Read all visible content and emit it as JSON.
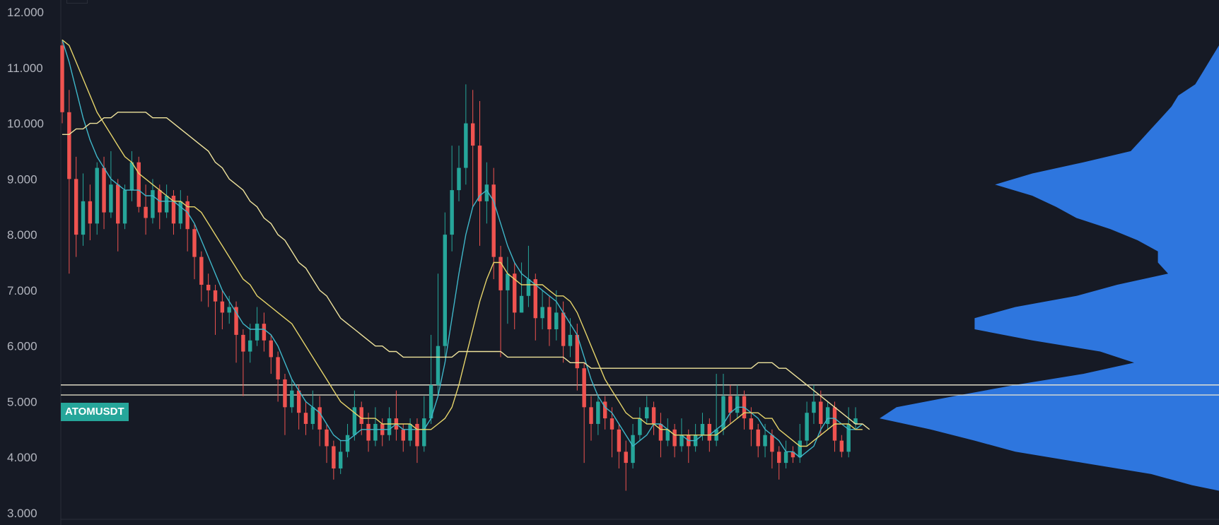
{
  "symbol": "ATOMUSDT",
  "colors": {
    "background": "#161a25",
    "axis_text": "#b2b5be",
    "up": "#26a69a",
    "down": "#ef5350",
    "ma_fast": "#3fb7c9",
    "ma_mid": "#e6d46a",
    "ma_slow": "#efe39c",
    "volume_profile": "#2f7be8",
    "hline": "#f0ead2"
  },
  "chart_data": {
    "type": "candlestick",
    "ylim": [
      3.0,
      12.0
    ],
    "yticks": [
      "12.000",
      "11.000",
      "10.000",
      "9.000",
      "8.000",
      "7.000",
      "6.000",
      "5.000",
      "4.000",
      "3.000"
    ],
    "horizontal_levels": [
      5.3,
      5.12
    ],
    "candles": [
      [
        11.4,
        10.2,
        11.5,
        10.0
      ],
      [
        10.2,
        9.0,
        10.6,
        7.3
      ],
      [
        9.0,
        8.0,
        9.4,
        7.6
      ],
      [
        8.0,
        8.6,
        9.1,
        7.8
      ],
      [
        8.6,
        8.2,
        8.9,
        7.9
      ],
      [
        8.2,
        9.2,
        9.3,
        8.0
      ],
      [
        9.2,
        8.4,
        9.4,
        8.1
      ],
      [
        8.4,
        8.9,
        9.5,
        8.3
      ],
      [
        8.9,
        8.2,
        9.0,
        7.7
      ],
      [
        8.2,
        8.8,
        8.9,
        8.1
      ],
      [
        8.8,
        9.3,
        9.5,
        8.6
      ],
      [
        9.3,
        8.5,
        9.4,
        8.4
      ],
      [
        8.5,
        8.3,
        8.9,
        8.0
      ],
      [
        8.3,
        8.8,
        9.0,
        8.2
      ],
      [
        8.8,
        8.4,
        8.9,
        8.1
      ],
      [
        8.4,
        8.7,
        8.9,
        8.3
      ],
      [
        8.7,
        8.2,
        8.8,
        8.0
      ],
      [
        8.2,
        8.6,
        8.8,
        8.1
      ],
      [
        8.6,
        8.1,
        8.7,
        7.7
      ],
      [
        8.1,
        7.6,
        8.2,
        7.2
      ],
      [
        7.6,
        7.1,
        7.7,
        6.8
      ],
      [
        7.1,
        7.0,
        7.3,
        6.7
      ],
      [
        7.0,
        6.8,
        7.1,
        6.2
      ],
      [
        6.8,
        6.6,
        7.0,
        6.3
      ],
      [
        6.6,
        6.7,
        6.9,
        6.4
      ],
      [
        6.7,
        6.2,
        6.8,
        5.7
      ],
      [
        6.2,
        5.9,
        6.3,
        5.1
      ],
      [
        5.9,
        6.1,
        6.4,
        5.7
      ],
      [
        6.1,
        6.4,
        6.7,
        6.0
      ],
      [
        6.4,
        6.1,
        6.6,
        5.9
      ],
      [
        6.1,
        5.8,
        6.2,
        5.5
      ],
      [
        5.8,
        5.4,
        5.9,
        5.0
      ],
      [
        5.4,
        4.9,
        5.5,
        4.4
      ],
      [
        4.9,
        5.2,
        5.4,
        4.8
      ],
      [
        5.2,
        4.8,
        5.3,
        4.5
      ],
      [
        4.8,
        4.6,
        5.0,
        4.4
      ],
      [
        4.6,
        4.9,
        5.2,
        4.5
      ],
      [
        4.9,
        4.5,
        5.1,
        4.2
      ],
      [
        4.5,
        4.2,
        4.6,
        3.9
      ],
      [
        4.2,
        3.8,
        4.3,
        3.6
      ],
      [
        3.8,
        4.1,
        4.3,
        3.7
      ],
      [
        4.1,
        4.4,
        4.6,
        4.0
      ],
      [
        4.4,
        4.9,
        5.2,
        4.3
      ],
      [
        4.9,
        4.6,
        5.0,
        4.4
      ],
      [
        4.6,
        4.3,
        4.8,
        4.1
      ],
      [
        4.3,
        4.6,
        4.9,
        4.2
      ],
      [
        4.6,
        4.4,
        4.7,
        4.2
      ],
      [
        4.4,
        4.7,
        4.9,
        4.3
      ],
      [
        4.7,
        4.5,
        5.2,
        4.3
      ],
      [
        4.5,
        4.3,
        4.6,
        4.1
      ],
      [
        4.3,
        4.6,
        4.7,
        4.2
      ],
      [
        4.6,
        4.2,
        4.7,
        3.9
      ],
      [
        4.2,
        4.7,
        5.1,
        4.1
      ],
      [
        4.7,
        5.3,
        6.2,
        4.6
      ],
      [
        5.3,
        6.0,
        7.3,
        5.1
      ],
      [
        6.0,
        8.0,
        8.4,
        5.8
      ],
      [
        8.0,
        8.8,
        9.6,
        7.7
      ],
      [
        8.8,
        9.2,
        9.6,
        8.6
      ],
      [
        9.2,
        10.0,
        10.7,
        8.9
      ],
      [
        10.0,
        9.6,
        10.6,
        8.5
      ],
      [
        9.6,
        8.6,
        10.4,
        7.8
      ],
      [
        8.6,
        8.9,
        9.3,
        8.2
      ],
      [
        8.9,
        7.6,
        9.2,
        7.2
      ],
      [
        7.6,
        7.0,
        7.8,
        5.8
      ],
      [
        7.0,
        7.3,
        7.6,
        6.4
      ],
      [
        7.3,
        6.6,
        7.5,
        6.3
      ],
      [
        6.6,
        6.9,
        7.5,
        6.6
      ],
      [
        6.9,
        7.2,
        7.8,
        6.7
      ],
      [
        7.2,
        6.5,
        7.3,
        6.1
      ],
      [
        6.5,
        6.7,
        7.0,
        6.3
      ],
      [
        6.7,
        6.3,
        6.9,
        6.0
      ],
      [
        6.3,
        6.6,
        7.0,
        6.1
      ],
      [
        6.6,
        6.0,
        6.8,
        5.7
      ],
      [
        6.0,
        6.2,
        6.5,
        5.8
      ],
      [
        6.2,
        5.6,
        6.4,
        5.2
      ],
      [
        5.6,
        4.9,
        5.7,
        3.9
      ],
      [
        4.9,
        4.6,
        5.1,
        4.3
      ],
      [
        4.6,
        5.0,
        5.1,
        4.4
      ],
      [
        5.0,
        4.7,
        5.1,
        4.5
      ],
      [
        4.7,
        4.5,
        4.9,
        4.0
      ],
      [
        4.5,
        4.1,
        4.6,
        3.8
      ],
      [
        4.1,
        3.9,
        4.3,
        3.4
      ],
      [
        3.9,
        4.4,
        4.6,
        3.8
      ],
      [
        4.4,
        4.7,
        4.9,
        4.3
      ],
      [
        4.7,
        4.9,
        5.1,
        4.6
      ],
      [
        4.9,
        4.6,
        5.0,
        4.4
      ],
      [
        4.6,
        4.3,
        4.8,
        4.0
      ],
      [
        4.3,
        4.5,
        4.7,
        4.2
      ],
      [
        4.5,
        4.2,
        4.6,
        4.0
      ],
      [
        4.2,
        4.4,
        4.7,
        4.1
      ],
      [
        4.4,
        4.2,
        4.5,
        3.9
      ],
      [
        4.2,
        4.4,
        4.6,
        4.1
      ],
      [
        4.4,
        4.6,
        4.8,
        4.3
      ],
      [
        4.6,
        4.3,
        4.7,
        4.1
      ],
      [
        4.3,
        4.5,
        5.5,
        4.2
      ],
      [
        4.5,
        5.1,
        5.5,
        4.4
      ],
      [
        5.1,
        4.8,
        5.3,
        4.6
      ],
      [
        4.8,
        5.1,
        5.3,
        4.7
      ],
      [
        5.1,
        4.7,
        5.2,
        4.5
      ],
      [
        4.7,
        4.5,
        4.9,
        4.2
      ],
      [
        4.5,
        4.2,
        4.6,
        4.0
      ],
      [
        4.2,
        4.4,
        4.6,
        4.0
      ],
      [
        4.4,
        4.1,
        4.5,
        3.8
      ],
      [
        4.1,
        3.9,
        4.2,
        3.6
      ],
      [
        3.9,
        4.1,
        4.3,
        3.8
      ],
      [
        4.1,
        4.0,
        4.2,
        3.9
      ],
      [
        4.0,
        4.3,
        4.6,
        3.9
      ],
      [
        4.3,
        4.8,
        5.0,
        4.2
      ],
      [
        4.8,
        5.0,
        5.3,
        4.6
      ],
      [
        5.0,
        4.6,
        5.2,
        4.4
      ],
      [
        4.6,
        4.9,
        5.0,
        4.5
      ],
      [
        4.9,
        4.3,
        5.0,
        4.1
      ],
      [
        4.3,
        4.1,
        4.4,
        4.0
      ],
      [
        4.1,
        4.6,
        4.9,
        4.0
      ],
      [
        4.6,
        4.7,
        4.9,
        4.5
      ]
    ],
    "series": [
      {
        "values": [
          11.5,
          11.1,
          10.6,
          10.1,
          9.7,
          9.4,
          9.2,
          9.0,
          8.9,
          8.8,
          8.8,
          8.8,
          8.7,
          8.7,
          8.6,
          8.6,
          8.6,
          8.5,
          8.4,
          8.2,
          7.9,
          7.6,
          7.3,
          7.0,
          6.8,
          6.6,
          6.4,
          6.3,
          6.3,
          6.3,
          6.2,
          6.0,
          5.7,
          5.4,
          5.2,
          5.0,
          4.9,
          4.8,
          4.6,
          4.4,
          4.3,
          4.3,
          4.4,
          4.5,
          4.5,
          4.5,
          4.5,
          4.5,
          4.6,
          4.5,
          4.5,
          4.5,
          4.5,
          4.7,
          5.1,
          5.7,
          6.5,
          7.3,
          8.0,
          8.5,
          8.7,
          8.8,
          8.6,
          8.2,
          7.8,
          7.5,
          7.3,
          7.2,
          7.1,
          7.0,
          6.9,
          6.8,
          6.6,
          6.4,
          6.2,
          5.8,
          5.4,
          5.1,
          4.9,
          4.8,
          4.6,
          4.4,
          4.2,
          4.3,
          4.4,
          4.6,
          4.6,
          4.5,
          4.4,
          4.4,
          4.3,
          4.3,
          4.4,
          4.4,
          4.5,
          4.6,
          4.8,
          4.9,
          4.9,
          4.8,
          4.7,
          4.5,
          4.4,
          4.3,
          4.1,
          4.1,
          4.0,
          4.1,
          4.2,
          4.5,
          4.7,
          4.7,
          4.6,
          4.5,
          4.5,
          4.6
        ]
      },
      {
        "values": [
          11.5,
          11.4,
          11.1,
          10.8,
          10.5,
          10.2,
          10.0,
          9.8,
          9.6,
          9.4,
          9.3,
          9.1,
          9.0,
          8.9,
          8.8,
          8.7,
          8.6,
          8.6,
          8.5,
          8.5,
          8.4,
          8.2,
          8.0,
          7.8,
          7.6,
          7.4,
          7.2,
          7.1,
          6.9,
          6.8,
          6.7,
          6.6,
          6.5,
          6.4,
          6.2,
          6.0,
          5.8,
          5.6,
          5.4,
          5.2,
          5.0,
          4.9,
          4.8,
          4.7,
          4.7,
          4.7,
          4.6,
          4.6,
          4.6,
          4.6,
          4.6,
          4.5,
          4.5,
          4.5,
          4.6,
          4.7,
          4.9,
          5.3,
          5.8,
          6.3,
          6.8,
          7.2,
          7.5,
          7.5,
          7.3,
          7.2,
          7.1,
          7.1,
          7.1,
          7.1,
          7.0,
          6.9,
          6.9,
          6.8,
          6.6,
          6.3,
          6.0,
          5.7,
          5.4,
          5.2,
          5.0,
          4.8,
          4.7,
          4.7,
          4.6,
          4.6,
          4.5,
          4.5,
          4.4,
          4.4,
          4.4,
          4.4,
          4.4,
          4.4,
          4.4,
          4.5,
          4.6,
          4.7,
          4.8,
          4.8,
          4.8,
          4.7,
          4.7,
          4.5,
          4.4,
          4.3,
          4.2,
          4.2,
          4.3,
          4.4,
          4.5,
          4.6,
          4.6,
          4.6,
          4.5,
          4.5
        ]
      },
      {
        "values": [
          9.8,
          9.8,
          9.9,
          9.9,
          10.0,
          10.0,
          10.1,
          10.1,
          10.2,
          10.2,
          10.2,
          10.2,
          10.2,
          10.1,
          10.1,
          10.1,
          10.0,
          9.9,
          9.8,
          9.7,
          9.6,
          9.5,
          9.3,
          9.2,
          9.0,
          8.9,
          8.8,
          8.6,
          8.5,
          8.3,
          8.2,
          8.0,
          7.9,
          7.7,
          7.5,
          7.4,
          7.2,
          7.0,
          6.9,
          6.7,
          6.5,
          6.4,
          6.3,
          6.2,
          6.1,
          6.0,
          6.0,
          5.9,
          5.9,
          5.8,
          5.8,
          5.8,
          5.8,
          5.8,
          5.8,
          5.8,
          5.8,
          5.9,
          5.9,
          5.9,
          5.9,
          5.9,
          5.9,
          5.9,
          5.8,
          5.8,
          5.8,
          5.8,
          5.8,
          5.8,
          5.8,
          5.8,
          5.8,
          5.7,
          5.7,
          5.7,
          5.6,
          5.6,
          5.6,
          5.6,
          5.6,
          5.6,
          5.6,
          5.6,
          5.6,
          5.6,
          5.6,
          5.6,
          5.6,
          5.6,
          5.6,
          5.6,
          5.6,
          5.6,
          5.6,
          5.6,
          5.6,
          5.6,
          5.6,
          5.6,
          5.7,
          5.7,
          5.7,
          5.6,
          5.6,
          5.5,
          5.4,
          5.3,
          5.2,
          5.1,
          5.0,
          4.9,
          4.8,
          4.7,
          4.6,
          4.6,
          4.5
        ]
      }
    ],
    "volume_profile": {
      "price": [
        11.3,
        11.1,
        10.9,
        10.7,
        10.5,
        10.3,
        10.1,
        9.9,
        9.7,
        9.5,
        9.3,
        9.1,
        8.9,
        8.7,
        8.5,
        8.3,
        8.1,
        7.9,
        7.7,
        7.5,
        7.3,
        7.1,
        6.9,
        6.7,
        6.5,
        6.3,
        6.1,
        5.9,
        5.7,
        5.5,
        5.3,
        5.1,
        4.9,
        4.7,
        4.5,
        4.3,
        4.1,
        3.9,
        3.7,
        3.5
      ],
      "volume": [
        0.01,
        0.03,
        0.05,
        0.07,
        0.12,
        0.14,
        0.17,
        0.2,
        0.23,
        0.26,
        0.4,
        0.55,
        0.66,
        0.55,
        0.48,
        0.42,
        0.32,
        0.24,
        0.18,
        0.18,
        0.15,
        0.3,
        0.42,
        0.6,
        0.72,
        0.72,
        0.55,
        0.35,
        0.25,
        0.4,
        0.6,
        0.78,
        0.95,
        1.0,
        0.85,
        0.72,
        0.6,
        0.4,
        0.2,
        0.08
      ]
    }
  }
}
